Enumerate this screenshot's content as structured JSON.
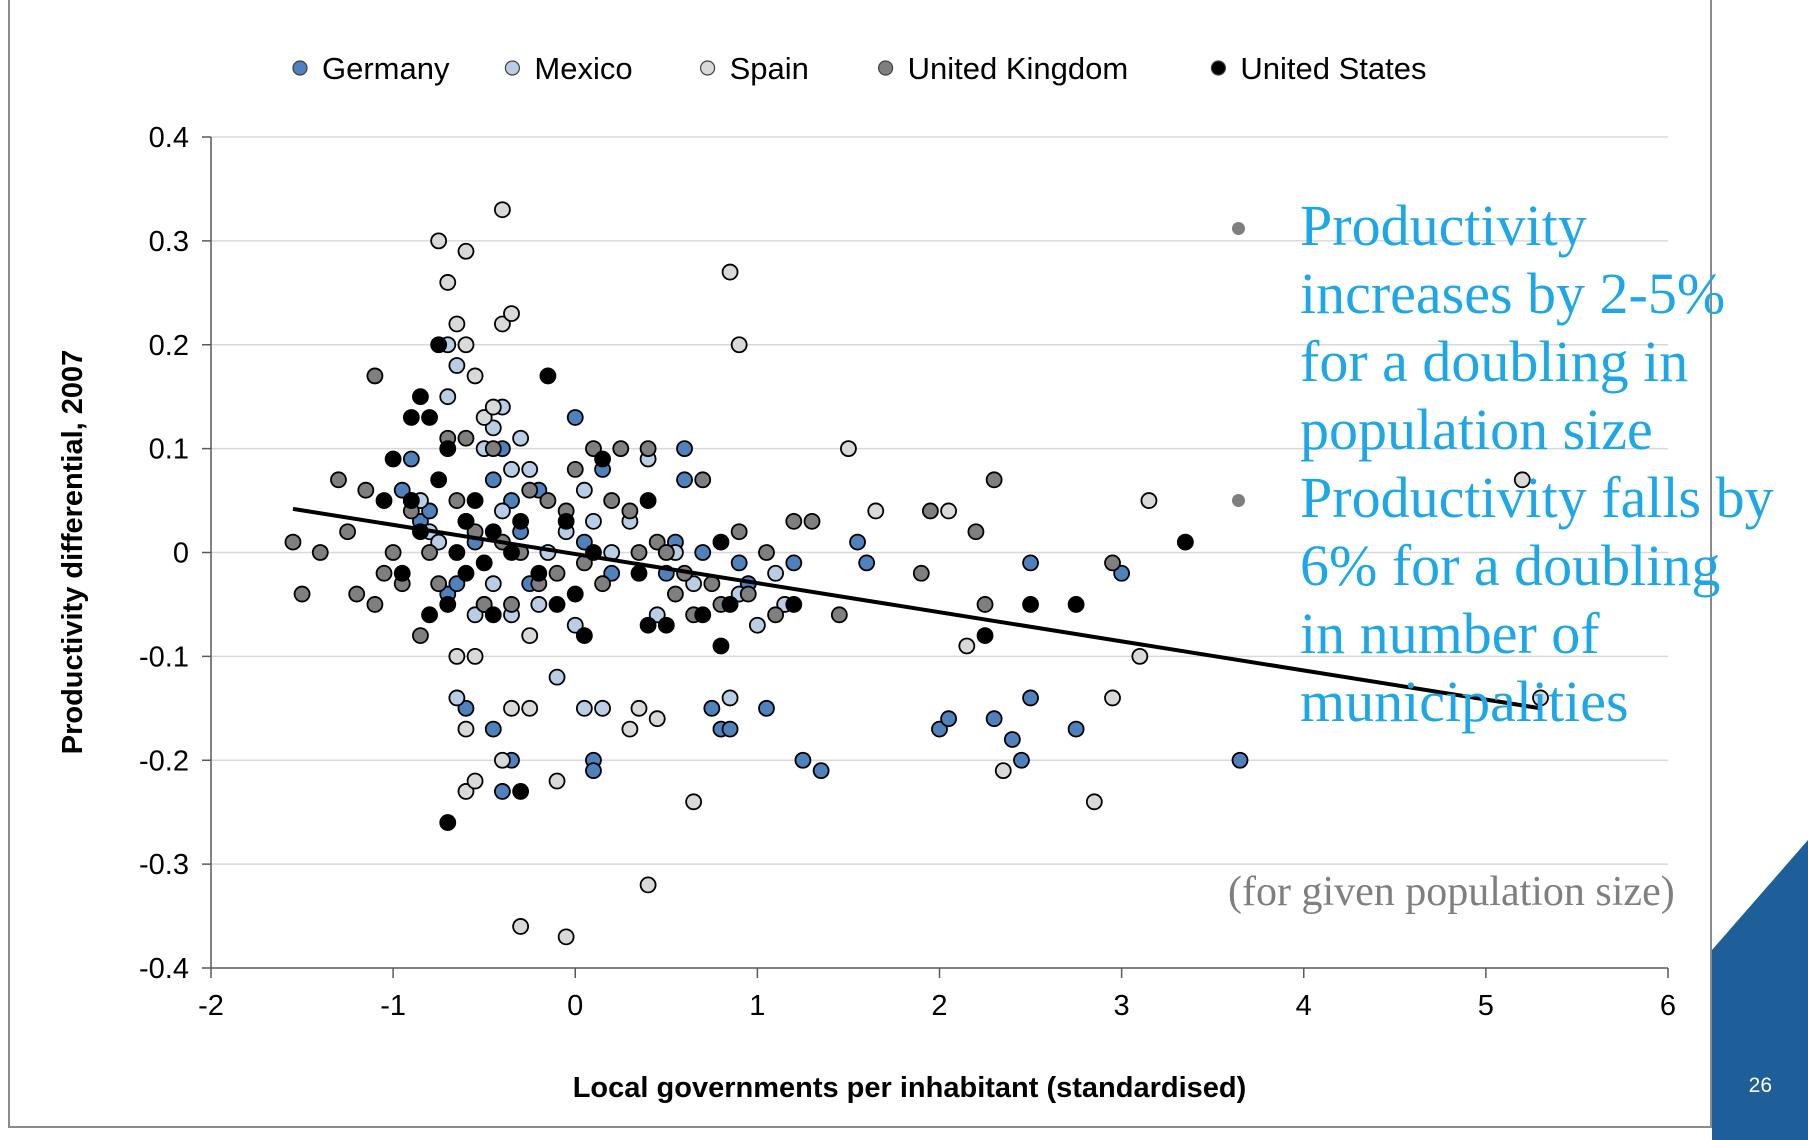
{
  "chart_data": {
    "type": "scatter",
    "title": "",
    "xlabel": "Local governments per inhabitant (standardised)",
    "ylabel": "Productivity differential, 2007",
    "xlim": [
      -2,
      6
    ],
    "ylim": [
      -0.4,
      0.4
    ],
    "x_ticks": [
      "-2",
      "-1",
      "0",
      "1",
      "2",
      "3",
      "4",
      "5",
      "6"
    ],
    "y_ticks": [
      "0.4",
      "0.3",
      "0.2",
      "0.1",
      "0",
      "-0.1",
      "-0.2",
      "-0.3",
      "-0.4"
    ],
    "grid": "horizontal",
    "legend_position": "top",
    "series": [
      {
        "name": "Germany",
        "color": "#4f81bd",
        "points": [
          [
            -0.95,
            0.06
          ],
          [
            -0.9,
            0.09
          ],
          [
            -0.9,
            0.05
          ],
          [
            -0.85,
            0.03
          ],
          [
            -0.8,
            0.04
          ],
          [
            -0.7,
            -0.04
          ],
          [
            -0.65,
            -0.03
          ],
          [
            -0.6,
            -0.15
          ],
          [
            -0.55,
            0.01
          ],
          [
            -0.5,
            -0.05
          ],
          [
            -0.45,
            -0.17
          ],
          [
            -0.45,
            0.07
          ],
          [
            -0.4,
            -0.23
          ],
          [
            -0.4,
            0.1
          ],
          [
            -0.35,
            -0.2
          ],
          [
            -0.35,
            0.05
          ],
          [
            -0.3,
            0.02
          ],
          [
            -0.25,
            -0.03
          ],
          [
            -0.2,
            0.06
          ],
          [
            0.0,
            0.13
          ],
          [
            0.05,
            0.01
          ],
          [
            0.1,
            -0.2
          ],
          [
            0.1,
            -0.21
          ],
          [
            0.15,
            0.08
          ],
          [
            0.2,
            -0.02
          ],
          [
            0.5,
            -0.02
          ],
          [
            0.55,
            0.01
          ],
          [
            0.6,
            0.1
          ],
          [
            0.6,
            0.07
          ],
          [
            0.7,
            0.0
          ],
          [
            0.75,
            -0.15
          ],
          [
            0.8,
            -0.17
          ],
          [
            0.85,
            -0.17
          ],
          [
            0.9,
            -0.01
          ],
          [
            0.95,
            -0.03
          ],
          [
            1.05,
            -0.15
          ],
          [
            1.2,
            -0.01
          ],
          [
            1.25,
            -0.2
          ],
          [
            1.35,
            -0.21
          ],
          [
            1.55,
            0.01
          ],
          [
            1.6,
            -0.01
          ],
          [
            2.0,
            -0.17
          ],
          [
            2.05,
            -0.16
          ],
          [
            2.3,
            -0.16
          ],
          [
            2.4,
            -0.18
          ],
          [
            2.45,
            -0.2
          ],
          [
            2.5,
            -0.14
          ],
          [
            2.5,
            -0.01
          ],
          [
            2.75,
            -0.17
          ],
          [
            3.0,
            -0.02
          ],
          [
            3.65,
            -0.2
          ]
        ]
      },
      {
        "name": "Mexico",
        "color": "#b9cde5",
        "points": [
          [
            -0.85,
            0.05
          ],
          [
            -0.8,
            0.02
          ],
          [
            -0.75,
            0.01
          ],
          [
            -0.7,
            0.2
          ],
          [
            -0.7,
            0.15
          ],
          [
            -0.65,
            -0.14
          ],
          [
            -0.65,
            0.18
          ],
          [
            -0.6,
            0.03
          ],
          [
            -0.55,
            -0.06
          ],
          [
            -0.5,
            0.1
          ],
          [
            -0.45,
            0.12
          ],
          [
            -0.45,
            -0.03
          ],
          [
            -0.4,
            0.14
          ],
          [
            -0.4,
            0.04
          ],
          [
            -0.35,
            0.08
          ],
          [
            -0.35,
            -0.06
          ],
          [
            -0.3,
            0.11
          ],
          [
            -0.25,
            0.08
          ],
          [
            -0.2,
            -0.05
          ],
          [
            -0.15,
            0.0
          ],
          [
            -0.1,
            -0.12
          ],
          [
            -0.05,
            0.02
          ],
          [
            0.0,
            -0.07
          ],
          [
            0.05,
            -0.15
          ],
          [
            0.05,
            0.06
          ],
          [
            0.1,
            0.03
          ],
          [
            0.15,
            -0.15
          ],
          [
            0.2,
            0.0
          ],
          [
            0.3,
            0.03
          ],
          [
            0.4,
            0.09
          ],
          [
            0.45,
            -0.06
          ],
          [
            0.55,
            0.0
          ],
          [
            0.65,
            -0.03
          ],
          [
            0.85,
            -0.14
          ],
          [
            0.9,
            -0.04
          ],
          [
            1.0,
            -0.07
          ],
          [
            1.1,
            -0.02
          ],
          [
            1.15,
            -0.05
          ]
        ]
      },
      {
        "name": "Spain",
        "color": "#d9d9d9",
        "points": [
          [
            -0.75,
            0.3
          ],
          [
            -0.7,
            0.26
          ],
          [
            -0.65,
            0.22
          ],
          [
            -0.6,
            0.29
          ],
          [
            -0.55,
            0.17
          ],
          [
            -0.5,
            0.13
          ],
          [
            -0.45,
            0.14
          ],
          [
            -0.4,
            0.33
          ],
          [
            -0.4,
            0.22
          ],
          [
            -0.35,
            0.23
          ],
          [
            -0.6,
            0.2
          ],
          [
            -0.65,
            -0.1
          ],
          [
            -0.55,
            -0.1
          ],
          [
            -0.6,
            -0.17
          ],
          [
            -0.6,
            -0.23
          ],
          [
            -0.55,
            -0.22
          ],
          [
            -0.4,
            -0.2
          ],
          [
            -0.35,
            -0.15
          ],
          [
            -0.3,
            -0.36
          ],
          [
            -0.25,
            -0.15
          ],
          [
            -0.25,
            -0.08
          ],
          [
            -0.1,
            -0.22
          ],
          [
            -0.05,
            -0.37
          ],
          [
            0.3,
            -0.17
          ],
          [
            0.35,
            -0.15
          ],
          [
            0.4,
            -0.32
          ],
          [
            0.45,
            -0.16
          ],
          [
            0.65,
            -0.24
          ],
          [
            0.85,
            0.27
          ],
          [
            0.9,
            0.2
          ],
          [
            1.5,
            0.1
          ],
          [
            1.65,
            0.04
          ],
          [
            2.05,
            0.04
          ],
          [
            2.15,
            -0.09
          ],
          [
            2.35,
            -0.21
          ],
          [
            2.85,
            -0.24
          ],
          [
            2.95,
            -0.14
          ],
          [
            3.1,
            -0.1
          ],
          [
            3.15,
            0.05
          ],
          [
            5.2,
            0.07
          ],
          [
            5.3,
            -0.14
          ]
        ]
      },
      {
        "name": "United Kingdom",
        "color": "#7f7f7f",
        "points": [
          [
            -1.55,
            0.01
          ],
          [
            -1.5,
            -0.04
          ],
          [
            -1.4,
            0.0
          ],
          [
            -1.3,
            0.07
          ],
          [
            -1.25,
            0.02
          ],
          [
            -1.2,
            -0.04
          ],
          [
            -1.15,
            0.06
          ],
          [
            -1.1,
            0.17
          ],
          [
            -1.1,
            -0.05
          ],
          [
            -1.05,
            -0.02
          ],
          [
            -1.0,
            0.0
          ],
          [
            -0.95,
            -0.03
          ],
          [
            -0.9,
            0.04
          ],
          [
            -0.85,
            -0.08
          ],
          [
            -0.8,
            0.0
          ],
          [
            -0.75,
            -0.03
          ],
          [
            -0.7,
            0.11
          ],
          [
            -0.65,
            0.05
          ],
          [
            -0.6,
            0.11
          ],
          [
            -0.55,
            0.02
          ],
          [
            -0.5,
            -0.05
          ],
          [
            -0.45,
            0.1
          ],
          [
            -0.4,
            0.01
          ],
          [
            -0.35,
            -0.05
          ],
          [
            -0.3,
            0.0
          ],
          [
            -0.25,
            0.06
          ],
          [
            -0.2,
            -0.03
          ],
          [
            -0.15,
            0.05
          ],
          [
            -0.1,
            -0.02
          ],
          [
            -0.05,
            0.04
          ],
          [
            0.0,
            0.08
          ],
          [
            0.05,
            -0.01
          ],
          [
            0.1,
            0.1
          ],
          [
            0.15,
            -0.03
          ],
          [
            0.2,
            0.05
          ],
          [
            0.25,
            0.1
          ],
          [
            0.3,
            0.04
          ],
          [
            0.35,
            0.0
          ],
          [
            0.4,
            0.1
          ],
          [
            0.45,
            0.01
          ],
          [
            0.5,
            0.0
          ],
          [
            0.55,
            -0.04
          ],
          [
            0.6,
            -0.02
          ],
          [
            0.65,
            -0.06
          ],
          [
            0.7,
            0.07
          ],
          [
            0.75,
            -0.03
          ],
          [
            0.8,
            -0.05
          ],
          [
            0.9,
            0.02
          ],
          [
            0.95,
            -0.04
          ],
          [
            1.05,
            0.0
          ],
          [
            1.1,
            -0.06
          ],
          [
            1.2,
            0.03
          ],
          [
            1.3,
            0.03
          ],
          [
            1.45,
            -0.06
          ],
          [
            1.9,
            -0.02
          ],
          [
            1.95,
            0.04
          ],
          [
            2.2,
            0.02
          ],
          [
            2.25,
            -0.05
          ],
          [
            2.3,
            0.07
          ],
          [
            2.95,
            -0.01
          ]
        ]
      },
      {
        "name": "United States",
        "color": "#000000",
        "points": [
          [
            -1.05,
            0.05
          ],
          [
            -1.0,
            0.09
          ],
          [
            -0.95,
            -0.02
          ],
          [
            -0.9,
            0.13
          ],
          [
            -0.9,
            0.05
          ],
          [
            -0.85,
            0.15
          ],
          [
            -0.85,
            0.02
          ],
          [
            -0.8,
            -0.06
          ],
          [
            -0.8,
            0.13
          ],
          [
            -0.75,
            0.2
          ],
          [
            -0.75,
            0.07
          ],
          [
            -0.7,
            0.1
          ],
          [
            -0.7,
            -0.05
          ],
          [
            -0.7,
            -0.26
          ],
          [
            -0.65,
            0.0
          ],
          [
            -0.6,
            -0.02
          ],
          [
            -0.6,
            0.03
          ],
          [
            -0.55,
            0.05
          ],
          [
            -0.5,
            -0.01
          ],
          [
            -0.45,
            0.02
          ],
          [
            -0.45,
            -0.06
          ],
          [
            -0.35,
            0.0
          ],
          [
            -0.3,
            -0.23
          ],
          [
            -0.3,
            0.03
          ],
          [
            -0.2,
            -0.02
          ],
          [
            -0.15,
            0.17
          ],
          [
            -0.1,
            -0.05
          ],
          [
            -0.05,
            0.03
          ],
          [
            0.0,
            -0.04
          ],
          [
            0.05,
            -0.08
          ],
          [
            0.1,
            0.0
          ],
          [
            0.15,
            0.09
          ],
          [
            0.35,
            -0.02
          ],
          [
            0.4,
            0.05
          ],
          [
            0.4,
            -0.07
          ],
          [
            0.5,
            -0.07
          ],
          [
            0.7,
            -0.06
          ],
          [
            0.8,
            -0.09
          ],
          [
            0.8,
            0.01
          ],
          [
            0.85,
            -0.05
          ],
          [
            1.2,
            -0.05
          ],
          [
            2.25,
            -0.08
          ],
          [
            2.5,
            -0.05
          ],
          [
            2.75,
            -0.05
          ],
          [
            3.35,
            0.01
          ]
        ]
      }
    ],
    "trendline": {
      "x": [
        -1.55,
        5.3
      ],
      "y": [
        0.042,
        -0.15
      ],
      "color": "#000000"
    }
  },
  "annotation": {
    "bullets": [
      "Productivity increases by 2-5% for a doubling in population size",
      "Productivity falls by 6% for a doubling in number of municipalities"
    ],
    "note": "(for given population size)"
  },
  "slide": {
    "number": "26",
    "accent_color": "#1f5f99"
  }
}
